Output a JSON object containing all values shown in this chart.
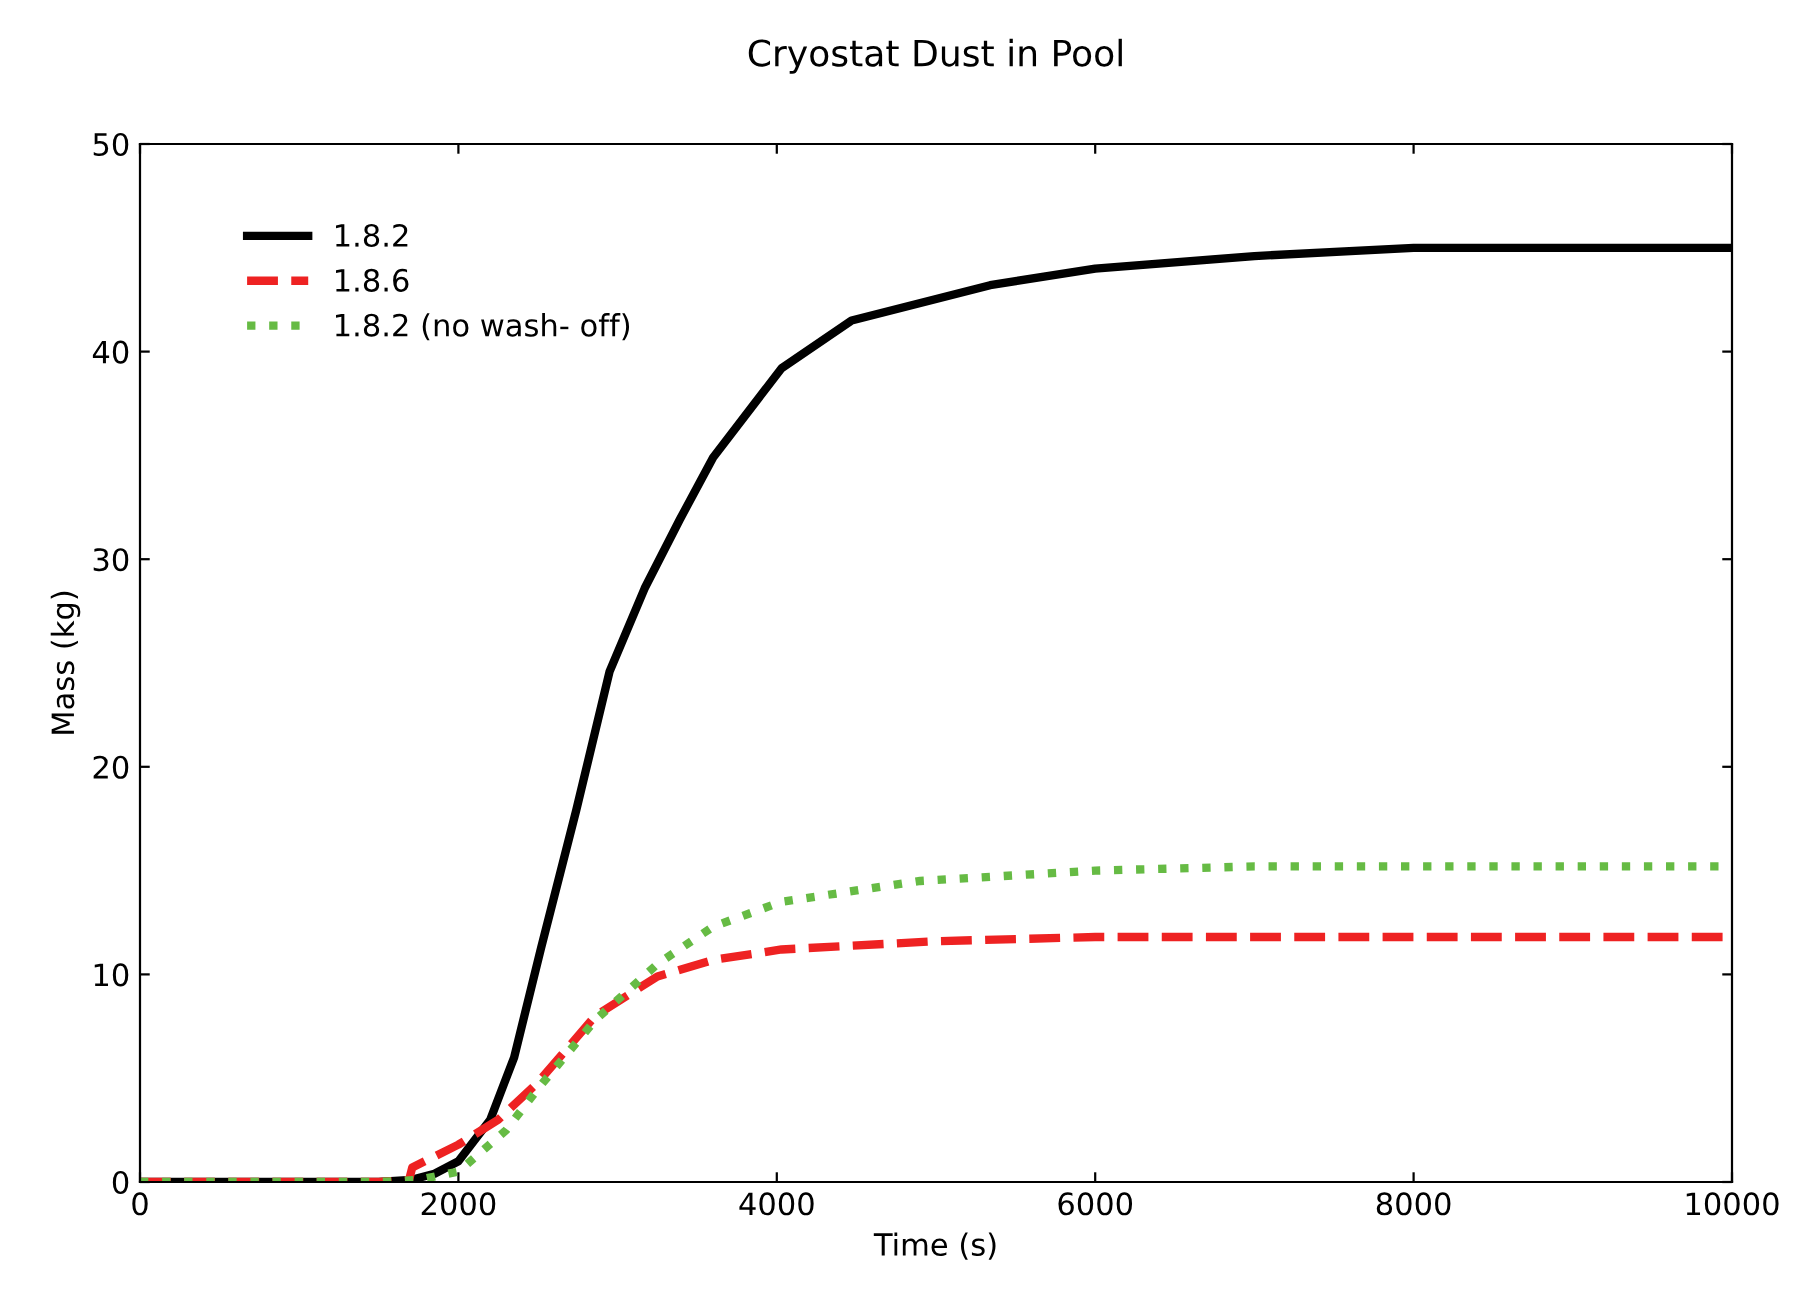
{
  "chart_data": {
    "type": "line",
    "title": "Cryostat Dust in Pool",
    "xlabel": "Time (s)",
    "ylabel": "Mass (kg)",
    "xlim": [
      0,
      10000
    ],
    "ylim": [
      0,
      50
    ],
    "xticks": [
      0,
      2000,
      4000,
      6000,
      8000,
      10000
    ],
    "yticks": [
      0,
      10,
      20,
      30,
      40,
      50
    ],
    "grid": false,
    "legend": "top left",
    "marker": "none",
    "series": [
      {
        "name": "1.8.2",
        "color": "#000000",
        "line_style": "solid",
        "x": [
          0,
          1500,
          1700,
          1850,
          2000,
          2200,
          2350,
          2520,
          2740,
          2950,
          3170,
          3390,
          3600,
          4030,
          4470,
          5340,
          6000,
          7000,
          8000,
          10000
        ],
        "values": [
          0,
          0,
          0.1,
          0.4,
          1,
          3,
          6,
          11.3,
          17.9,
          24.6,
          28.6,
          31.9,
          34.9,
          39.2,
          41.5,
          43.2,
          44,
          44.6,
          45,
          45
        ]
      },
      {
        "name": "1.8.6",
        "color": "#ee2222",
        "line_style": "dashed",
        "x": [
          0,
          1500,
          1690,
          1710,
          2000,
          2250,
          2500,
          2860,
          3250,
          3600,
          4030,
          5000,
          6000,
          8000,
          10000
        ],
        "values": [
          0,
          0,
          0.1,
          0.7,
          1.8,
          3,
          4.8,
          8,
          9.9,
          10.7,
          11.2,
          11.6,
          11.8,
          11.8,
          11.8
        ]
      },
      {
        "name": "1.8.2 (no wash- off)",
        "color": "#66bb44",
        "line_style": "dotted",
        "x": [
          0,
          1500,
          1750,
          2000,
          2300,
          2500,
          2860,
          3250,
          3600,
          4030,
          4900,
          6000,
          7000,
          10000
        ],
        "values": [
          0,
          0,
          0.1,
          0.5,
          2.5,
          4.5,
          7.8,
          10.5,
          12.3,
          13.5,
          14.5,
          15,
          15.2,
          15.2
        ]
      }
    ]
  }
}
